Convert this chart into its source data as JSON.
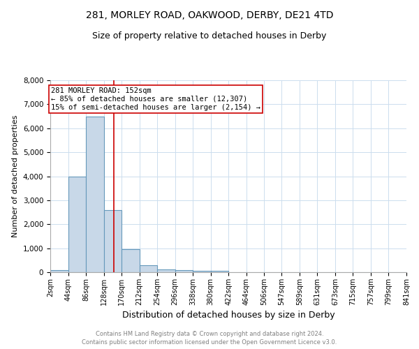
{
  "title": "281, MORLEY ROAD, OAKWOOD, DERBY, DE21 4TD",
  "subtitle": "Size of property relative to detached houses in Derby",
  "xlabel": "Distribution of detached houses by size in Derby",
  "ylabel": "Number of detached properties",
  "footer_line1": "Contains HM Land Registry data © Crown copyright and database right 2024.",
  "footer_line2": "Contains public sector information licensed under the Open Government Licence v3.0.",
  "bin_edges": [
    2,
    44,
    86,
    128,
    170,
    212,
    254,
    296,
    338,
    380,
    422,
    464,
    506,
    547,
    589,
    631,
    673,
    715,
    757,
    799,
    841
  ],
  "bar_heights": [
    75,
    4000,
    6500,
    2600,
    950,
    300,
    110,
    75,
    50,
    50,
    0,
    0,
    0,
    0,
    0,
    0,
    0,
    0,
    0,
    0
  ],
  "bar_color": "#c8d8e8",
  "bar_edge_color": "#6699bb",
  "property_size": 152,
  "vline_color": "#cc0000",
  "annotation_text": "281 MORLEY ROAD: 152sqm\n← 85% of detached houses are smaller (12,307)\n15% of semi-detached houses are larger (2,154) →",
  "annotation_box_color": "#cc0000",
  "annotation_bg": "white",
  "ylim": [
    0,
    8000
  ],
  "yticks": [
    0,
    1000,
    2000,
    3000,
    4000,
    5000,
    6000,
    7000,
    8000
  ],
  "grid_color": "#ccddee",
  "title_fontsize": 10,
  "subtitle_fontsize": 9,
  "tick_label_size": 7,
  "ylabel_fontsize": 8,
  "xlabel_fontsize": 9,
  "footer_fontsize": 6,
  "annotation_fontsize": 7.5
}
